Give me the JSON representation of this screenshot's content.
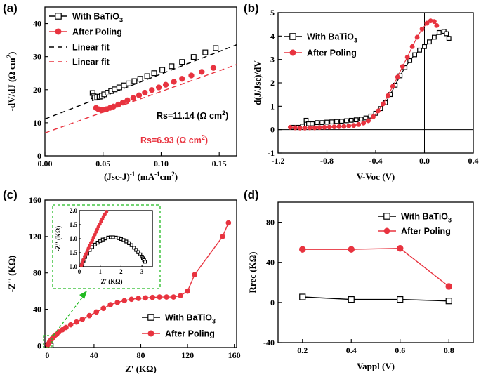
{
  "colors": {
    "black": "#000000",
    "red": "#e8333f",
    "green": "#22bb22"
  },
  "chart_data": [
    {
      "id": "a",
      "panel_label": "(a)",
      "type": "scatter",
      "xlabel": "(Jsc-J)",
      "xlabel_sup": "-1",
      "xlabel_units": " (mA",
      "xlabel_units_sup": "-1",
      "xlabel_units_tail": "cm",
      "xlabel_units_sup2": "2",
      "xlabel_units_end": ")",
      "ylabel": "-dV/dJ (Ω cm",
      "ylabel_sup": "2",
      "ylabel_end": ")",
      "xlim": [
        0.0,
        0.165
      ],
      "ylim": [
        0,
        45
      ],
      "xticks": [
        "0.00",
        "0.05",
        "0.10",
        "0.15"
      ],
      "xtick_values": [
        0,
        0.05,
        0.1,
        0.15
      ],
      "yticks": [
        "0",
        "10",
        "20",
        "30",
        "40"
      ],
      "ytick_values": [
        0,
        10,
        20,
        30,
        40
      ],
      "legend": [
        "With BaTiO",
        "After Poling",
        "Linear fit",
        "Linear fit"
      ],
      "legend_sub": "3",
      "series": [
        {
          "name": "With BaTiO3",
          "marker": "square",
          "color": "#000000",
          "x": [
            0.041,
            0.042,
            0.043,
            0.045,
            0.047,
            0.049,
            0.051,
            0.054,
            0.057,
            0.06,
            0.064,
            0.068,
            0.072,
            0.077,
            0.082,
            0.088,
            0.094,
            0.101,
            0.109,
            0.118,
            0.128,
            0.138,
            0.147
          ],
          "y": [
            19.0,
            18.0,
            17.6,
            17.7,
            17.9,
            18.2,
            18.6,
            19.1,
            19.6,
            20.1,
            20.7,
            21.3,
            21.9,
            22.6,
            23.3,
            24.1,
            25.0,
            26.0,
            27.1,
            28.4,
            29.9,
            31.3,
            32.6
          ]
        },
        {
          "name": "After Poling",
          "marker": "circle",
          "color": "#e8333f",
          "x": [
            0.044,
            0.046,
            0.048,
            0.05,
            0.053,
            0.056,
            0.059,
            0.063,
            0.067,
            0.071,
            0.076,
            0.081,
            0.086,
            0.092,
            0.098,
            0.104,
            0.111,
            0.118,
            0.126,
            0.135,
            0.145
          ],
          "y": [
            14.5,
            14.1,
            13.9,
            13.9,
            14.1,
            14.5,
            14.9,
            15.5,
            16.1,
            16.8,
            17.5,
            18.3,
            19.1,
            19.9,
            20.7,
            21.5,
            22.4,
            23.3,
            24.3,
            25.4,
            26.6
          ]
        },
        {
          "name": "Linear fit (With BaTiO3)",
          "type": "line",
          "dash": true,
          "color": "#000000",
          "x": [
            0.0,
            0.165
          ],
          "y": [
            11.14,
            33.6
          ]
        },
        {
          "name": "Linear fit (After Poling)",
          "type": "line",
          "dash": true,
          "color": "#e8333f",
          "x": [
            0.0,
            0.165
          ],
          "y": [
            6.93,
            27.6
          ]
        }
      ],
      "annotations": [
        {
          "text": "Rs=11.14 (Ω cm",
          "sup": "2",
          "end": ")",
          "color": "#000000"
        },
        {
          "text": "Rs=6.93 (Ω cm",
          "sup": "2",
          "end": ")",
          "color": "#e8333f"
        }
      ]
    },
    {
      "id": "b",
      "panel_label": "(b)",
      "type": "line",
      "xlabel": "V-Voc (V)",
      "ylabel": "d(J/Jsc)/dV",
      "xlim": [
        -1.2,
        0.4
      ],
      "ylim": [
        -1,
        5
      ],
      "xticks": [
        "-1.2",
        "-0.8",
        "-0.4",
        "0.0",
        "0.4"
      ],
      "xtick_values": [
        -1.2,
        -0.8,
        -0.4,
        0.0,
        0.4
      ],
      "yticks": [
        "-1",
        "0",
        "1",
        "2",
        "3",
        "4",
        "5"
      ],
      "ytick_values": [
        -1,
        0,
        1,
        2,
        3,
        4,
        5
      ],
      "legend": [
        "With BaTiO",
        "After Poling"
      ],
      "legend_sub": "3",
      "series": [
        {
          "name": "With BaTiO3",
          "marker": "square",
          "color": "#000000",
          "x": [
            -1.08,
            -1.04,
            -1.0,
            -0.97,
            -0.95,
            -0.92,
            -0.88,
            -0.84,
            -0.8,
            -0.76,
            -0.72,
            -0.68,
            -0.64,
            -0.6,
            -0.56,
            -0.52,
            -0.48,
            -0.44,
            -0.4,
            -0.36,
            -0.32,
            -0.28,
            -0.24,
            -0.2,
            -0.16,
            -0.12,
            -0.08,
            -0.04,
            0.0,
            0.04,
            0.08,
            0.12,
            0.16,
            0.18,
            0.2
          ],
          "y": [
            0.1,
            0.1,
            0.15,
            0.4,
            0.25,
            0.25,
            0.3,
            0.3,
            0.32,
            0.33,
            0.35,
            0.36,
            0.38,
            0.4,
            0.42,
            0.45,
            0.5,
            0.58,
            0.7,
            0.9,
            1.15,
            1.5,
            1.9,
            2.3,
            2.65,
            2.95,
            3.2,
            3.4,
            3.55,
            3.75,
            3.95,
            4.15,
            4.2,
            4.1,
            3.9
          ]
        },
        {
          "name": "After Poling",
          "marker": "circle",
          "color": "#e8333f",
          "x": [
            -1.1,
            -1.06,
            -1.02,
            -0.98,
            -0.94,
            -0.9,
            -0.86,
            -0.82,
            -0.78,
            -0.74,
            -0.7,
            -0.66,
            -0.62,
            -0.58,
            -0.54,
            -0.5,
            -0.46,
            -0.42,
            -0.38,
            -0.34,
            -0.3,
            -0.26,
            -0.22,
            -0.18,
            -0.14,
            -0.1,
            -0.06,
            -0.02,
            0.02,
            0.05,
            0.08,
            0.1
          ],
          "y": [
            0.1,
            0.08,
            0.07,
            0.07,
            0.08,
            0.08,
            0.09,
            0.1,
            0.11,
            0.12,
            0.13,
            0.14,
            0.16,
            0.18,
            0.22,
            0.28,
            0.38,
            0.55,
            0.8,
            1.1,
            1.45,
            1.85,
            2.25,
            2.7,
            3.1,
            3.55,
            3.95,
            4.3,
            4.55,
            4.65,
            4.62,
            4.45
          ]
        }
      ]
    },
    {
      "id": "c",
      "panel_label": "(c)",
      "type": "line",
      "xlabel": "Z' (KΩ)",
      "ylabel": "-Z'' (KΩ)",
      "xlim": [
        -2,
        162
      ],
      "ylim": [
        -2,
        160
      ],
      "xticks": [
        "0",
        "40",
        "80",
        "120",
        "160"
      ],
      "xtick_values": [
        0,
        40,
        80,
        120,
        160
      ],
      "yticks": [
        "0",
        "40",
        "80",
        "120",
        "160"
      ],
      "ytick_values": [
        0,
        40,
        80,
        120,
        160
      ],
      "legend": [
        "With BaTiO",
        "After Poling"
      ],
      "legend_sub": "3",
      "series": [
        {
          "name": "With BaTiO3",
          "marker": "square",
          "color": "#000000",
          "x": [
            0.2,
            0.5,
            1.0,
            1.6,
            2.2,
            2.8,
            3.2
          ],
          "y": [
            0.1,
            0.5,
            0.9,
            1.05,
            0.95,
            0.7,
            0.3
          ]
        },
        {
          "name": "After Poling",
          "marker": "circle",
          "color": "#e8333f",
          "x": [
            0.5,
            1,
            2,
            3,
            4,
            5,
            6,
            8,
            10,
            13,
            16,
            20,
            25,
            30,
            36,
            42,
            48,
            54,
            60,
            66,
            72,
            78,
            84,
            90,
            96,
            102,
            108,
            114,
            120,
            126,
            150,
            155
          ],
          "y": [
            1,
            2,
            4,
            6,
            7.5,
            9,
            10.5,
            12.5,
            15,
            17.5,
            20,
            23,
            26,
            29,
            33,
            37,
            41,
            45,
            47.5,
            49.5,
            51,
            52,
            52.5,
            53,
            53.5,
            53.5,
            53.5,
            55,
            60,
            78,
            120,
            135
          ]
        }
      ],
      "inset": {
        "xlim": [
          0,
          3.5
        ],
        "ylim": [
          0,
          2.0
        ],
        "xticks": [
          "0",
          "1",
          "2",
          "3"
        ],
        "xtick_values": [
          0,
          1,
          2,
          3
        ],
        "yticks": [
          "0.0",
          "0.5",
          "1.0",
          "1.5",
          "2.0"
        ],
        "ytick_values": [
          0,
          0.5,
          1.0,
          1.5,
          2.0
        ],
        "xlabel": "Z' (KΩ)",
        "ylabel": "-Z'' (KΩ)",
        "series": [
          {
            "name": "With BaTiO3",
            "marker": "square",
            "color": "#000000",
            "x": [
              0.12,
              0.15,
              0.2,
              0.28,
              0.38,
              0.5,
              0.62,
              0.75,
              0.88,
              1.0,
              1.12,
              1.25,
              1.38,
              1.5,
              1.62,
              1.75,
              1.88,
              2.0,
              2.12,
              2.25,
              2.38,
              2.5,
              2.62,
              2.72,
              2.82,
              2.92,
              3.0,
              3.05,
              3.1,
              3.15
            ],
            "y": [
              0.05,
              0.12,
              0.22,
              0.35,
              0.48,
              0.6,
              0.7,
              0.79,
              0.86,
              0.92,
              0.97,
              1.01,
              1.04,
              1.05,
              1.05,
              1.04,
              1.02,
              0.99,
              0.95,
              0.9,
              0.84,
              0.77,
              0.68,
              0.6,
              0.52,
              0.44,
              0.36,
              0.3,
              0.24,
              0.18
            ]
          },
          {
            "name": "After Poling",
            "marker": "circle",
            "color": "#e8333f",
            "x": [
              0.1,
              0.15,
              0.2,
              0.26,
              0.32,
              0.38,
              0.44,
              0.5,
              0.56,
              0.62,
              0.68,
              0.74,
              0.8,
              0.86,
              0.92,
              0.98,
              1.04,
              1.1,
              1.16,
              1.22,
              1.3
            ],
            "y": [
              0.05,
              0.15,
              0.25,
              0.36,
              0.46,
              0.56,
              0.66,
              0.76,
              0.86,
              0.95,
              1.05,
              1.14,
              1.24,
              1.33,
              1.43,
              1.52,
              1.61,
              1.7,
              1.79,
              1.87,
              1.96
            ]
          }
        ]
      }
    },
    {
      "id": "d",
      "panel_label": "(d)",
      "type": "line",
      "xlabel": "Vappl (V)",
      "ylabel": "Rrec (KΩ)",
      "xlim": [
        0.1,
        0.9
      ],
      "ylim": [
        -40,
        100
      ],
      "xticks": [
        "0.2",
        "0.4",
        "0.6",
        "0.8"
      ],
      "xtick_values": [
        0.2,
        0.4,
        0.6,
        0.8
      ],
      "yticks": [
        "-40",
        "0",
        "40",
        "80"
      ],
      "ytick_values": [
        -40,
        0,
        40,
        80
      ],
      "legend": [
        "With BaTiO",
        "After Poling"
      ],
      "legend_sub": "3",
      "series": [
        {
          "name": "With BaTiO3",
          "marker": "square",
          "color": "#000000",
          "x": [
            0.2,
            0.4,
            0.6,
            0.8
          ],
          "y": [
            5.5,
            3,
            3,
            1.5
          ]
        },
        {
          "name": "After Poling",
          "marker": "circle",
          "color": "#e8333f",
          "x": [
            0.2,
            0.4,
            0.6,
            0.8
          ],
          "y": [
            53,
            53,
            54,
            16
          ]
        }
      ]
    }
  ]
}
